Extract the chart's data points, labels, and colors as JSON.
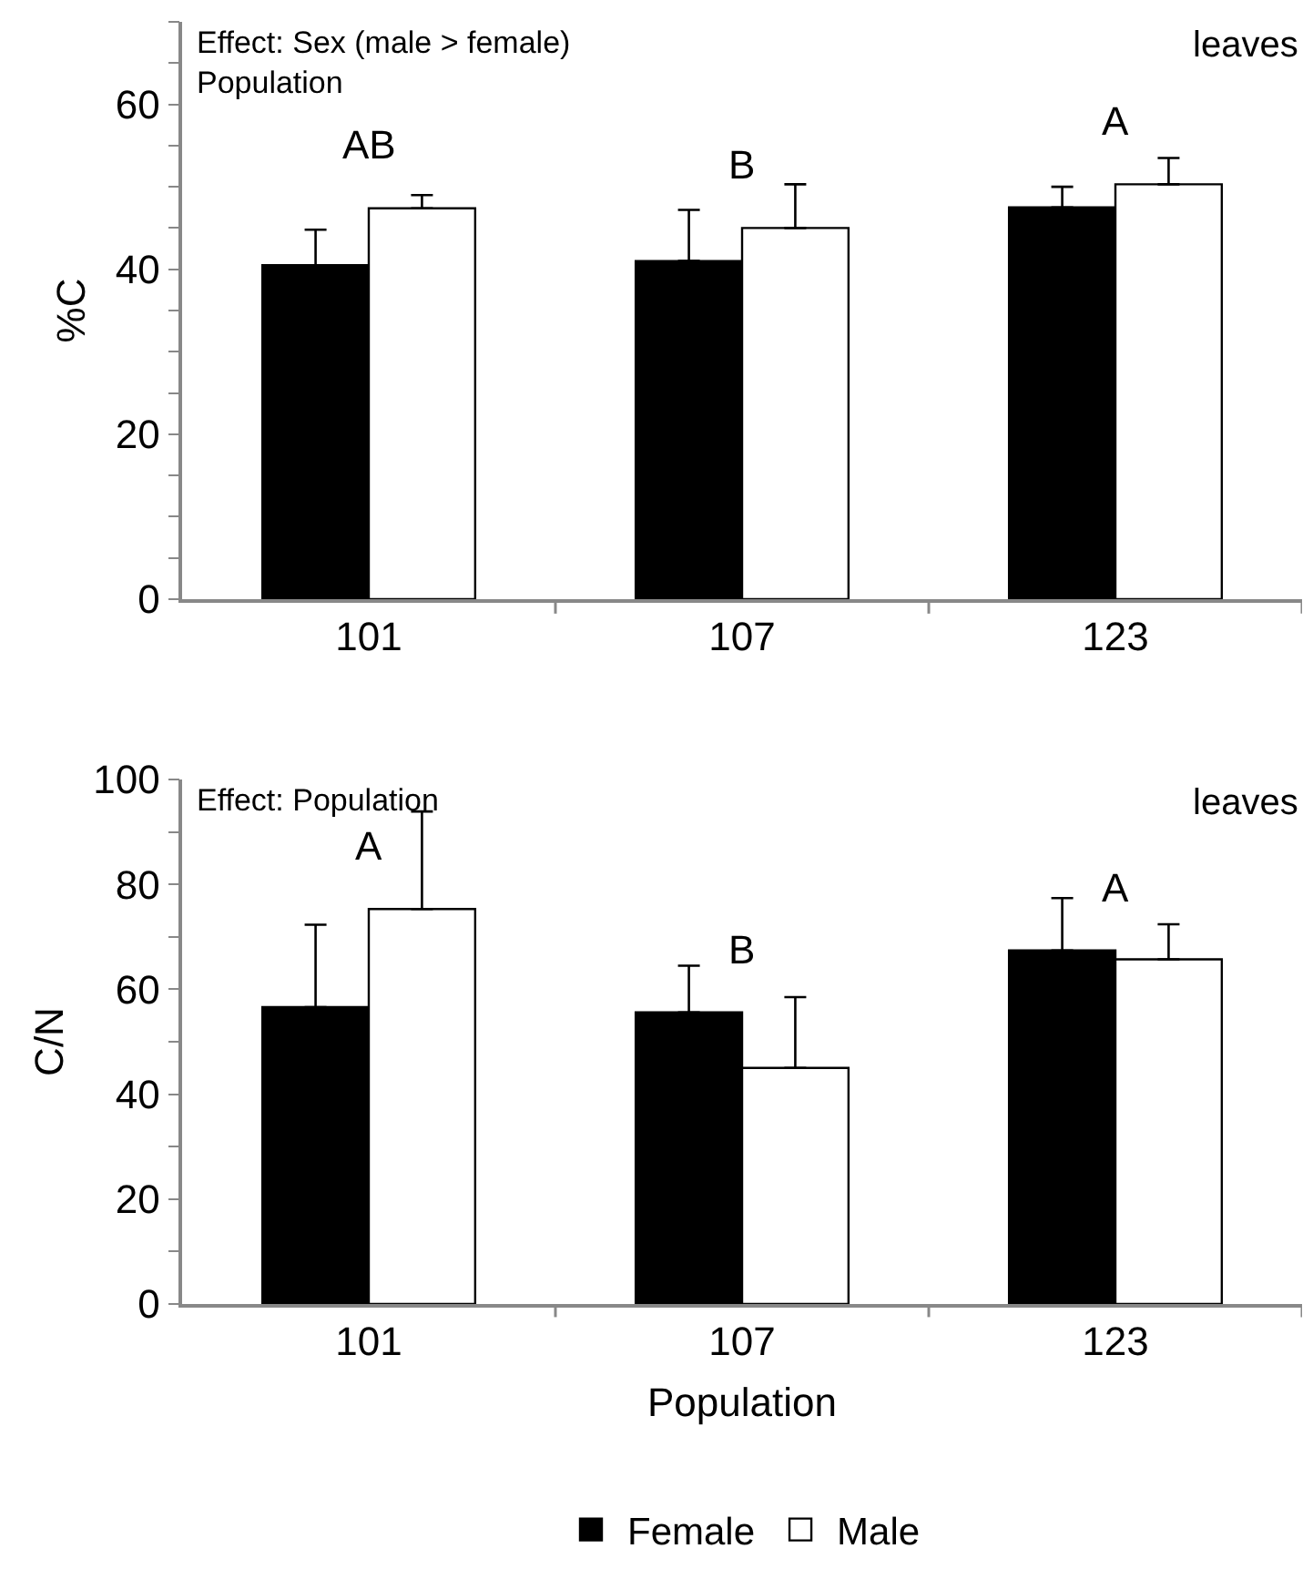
{
  "chart_data": [
    {
      "type": "bar",
      "ylabel": "%C",
      "categories": [
        "101",
        "107",
        "123"
      ],
      "ylim": [
        0,
        70
      ],
      "yticks": [
        0,
        {
          "value": 5,
          "label": null
        },
        {
          "value": 10,
          "label": null
        },
        {
          "value": 15,
          "label": null
        },
        20,
        {
          "value": 25,
          "label": null
        },
        {
          "value": 30,
          "label": null
        },
        {
          "value": 35,
          "label": null
        },
        40,
        {
          "value": 45,
          "label": null
        },
        {
          "value": 50,
          "label": null
        },
        {
          "value": 55,
          "label": null
        },
        60,
        {
          "value": 65,
          "label": null
        },
        {
          "value": 70,
          "label": null
        }
      ],
      "grid": false,
      "series": [
        {
          "color": "#000000",
          "values": [
            40.5,
            41,
            47.5
          ],
          "errors": [
            [
              40.5,
              44.8
            ],
            [
              41,
              47.2
            ],
            [
              47.5,
              50
            ]
          ]
        },
        {
          "color": "#ffffff",
          "values": [
            47.4,
            45,
            50.3
          ],
          "errors": [
            [
              47.4,
              49
            ],
            [
              45,
              50.3
            ],
            [
              50.3,
              53.5
            ]
          ]
        }
      ],
      "annotations": [
        "Effect: Sex (male > female)\nPopulation",
        "leaves",
        "AB",
        "B",
        "A"
      ]
    },
    {
      "type": "bar",
      "ylabel": "C/N",
      "xlabel": "Population",
      "categories": [
        "101",
        "107",
        "123"
      ],
      "ylim": [
        0,
        100
      ],
      "yticks": [
        0,
        {
          "value": 10,
          "label": null
        },
        20,
        {
          "value": 30,
          "label": null
        },
        40,
        {
          "value": 50,
          "label": null
        },
        60,
        {
          "value": 70,
          "label": null
        },
        80,
        {
          "value": 90,
          "label": null
        },
        100
      ],
      "grid": false,
      "legend": "bottom",
      "series": [
        {
          "name": "Female",
          "color": "#000000",
          "values": [
            56.6,
            55.6,
            67.4
          ],
          "errors": [
            [
              56.6,
              72.3
            ],
            [
              55.6,
              64.5
            ],
            [
              67.4,
              77.4
            ]
          ]
        },
        {
          "name": "Male",
          "color": "#ffffff",
          "values": [
            75.3,
            45,
            65.7
          ],
          "errors": [
            [
              75.3,
              93.9
            ],
            [
              45,
              58.5
            ],
            [
              65.7,
              72.4
            ]
          ]
        }
      ],
      "annotations": [
        "Effect: Population",
        "leaves",
        "A",
        "B",
        "A"
      ]
    }
  ]
}
